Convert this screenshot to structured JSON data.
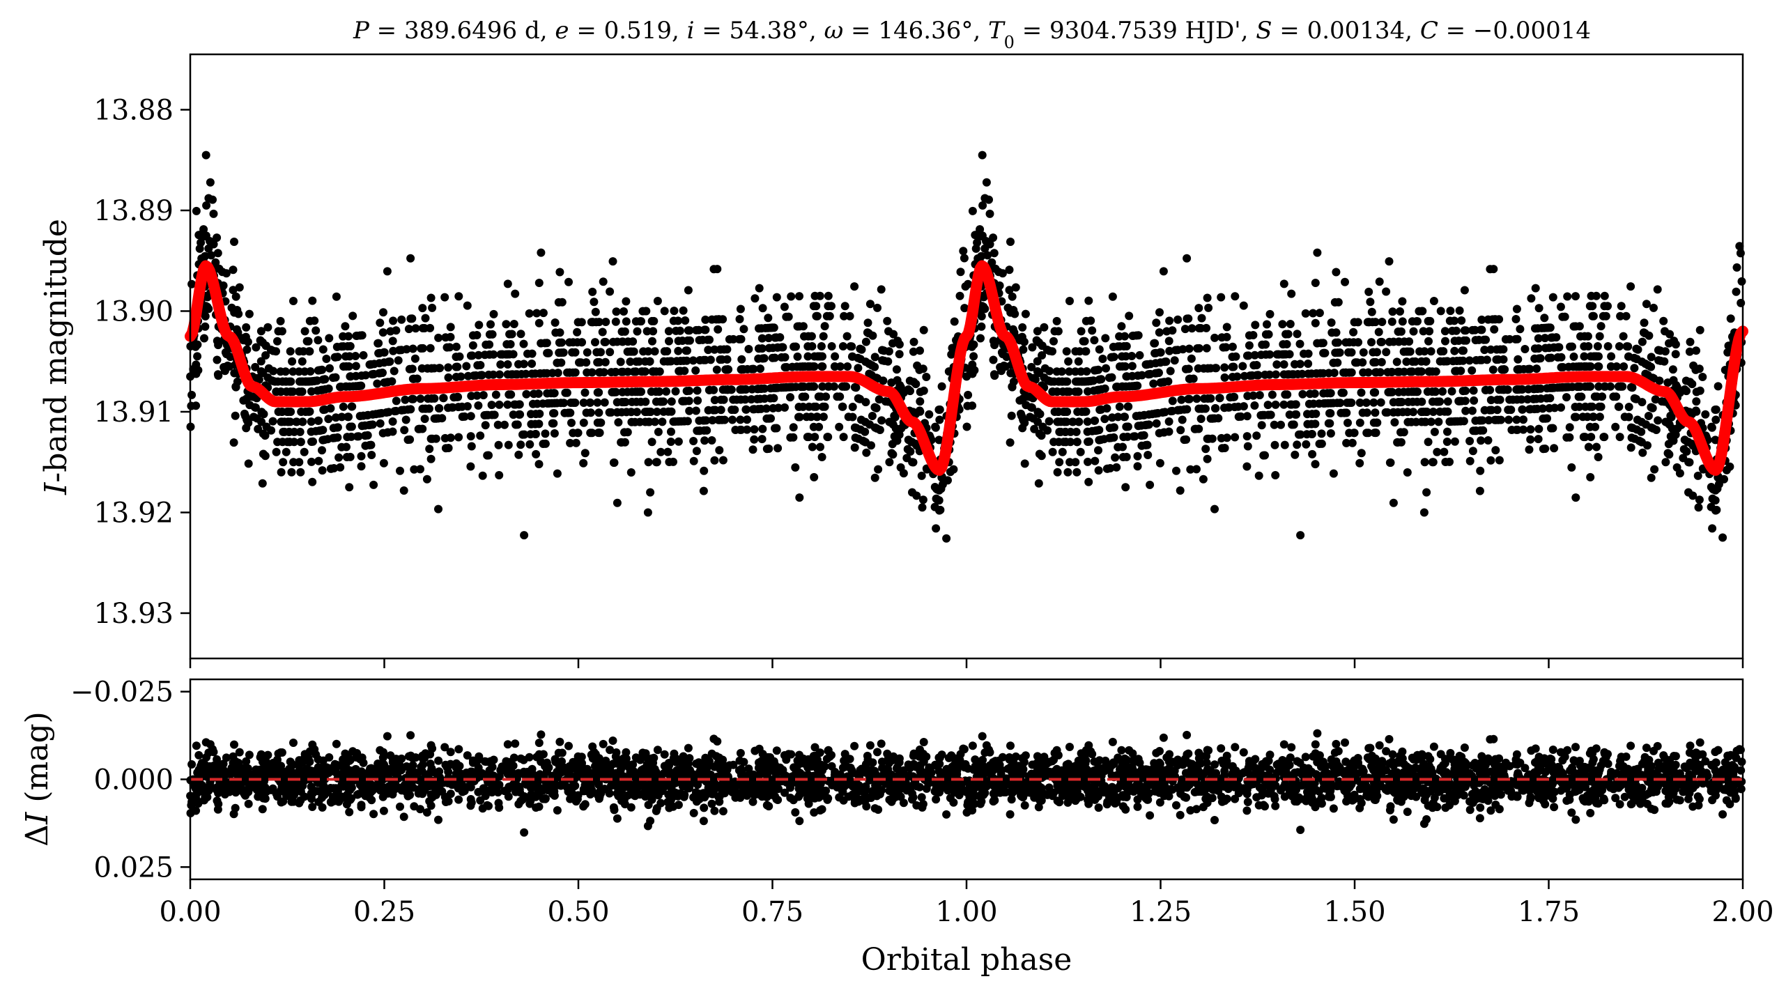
{
  "chart_data": [
    {
      "type": "scatter",
      "title": "P = 389.6496 d, e = 0.519, i = 54.38°, ω = 146.36°, T0 = 9304.7539 HJD', S = 0.00134, C = −0.00014",
      "xlabel": "",
      "ylabel": "I-band magnitude",
      "xlim": [
        0.0,
        2.0
      ],
      "ylim": [
        13.9345,
        13.8745
      ],
      "y_inverted": true,
      "yticks": [
        "13.88",
        "13.89",
        "13.90",
        "13.91",
        "13.92",
        "13.93"
      ],
      "ytick_values": [
        13.88,
        13.89,
        13.9,
        13.91,
        13.92,
        13.93
      ],
      "series": [
        {
          "kind": "points",
          "color": "#000000",
          "baseline_mag": 13.907,
          "scatter_sigma_mag": 0.004
        },
        {
          "kind": "model-line",
          "color": "#ff0000",
          "x": [
            0.0,
            0.02,
            0.05,
            0.08,
            0.11,
            0.15,
            0.2,
            0.3,
            0.4,
            0.5,
            0.6,
            0.7,
            0.8,
            0.85,
            0.9,
            0.93,
            0.965,
            1.0,
            1.02,
            1.05,
            1.08,
            1.11,
            1.15,
            1.2,
            1.3,
            1.4,
            1.5,
            1.6,
            1.7,
            1.8,
            1.85,
            1.9,
            1.93,
            1.965,
            2.0
          ],
          "y": [
            13.9025,
            13.8955,
            13.9025,
            13.9075,
            13.909,
            13.909,
            13.9085,
            13.9077,
            13.9073,
            13.9071,
            13.907,
            13.9068,
            13.9065,
            13.9065,
            13.908,
            13.911,
            13.9158,
            13.9025,
            13.8955,
            13.9025,
            13.9075,
            13.909,
            13.909,
            13.9085,
            13.9077,
            13.9073,
            13.9071,
            13.907,
            13.9068,
            13.9065,
            13.9065,
            13.908,
            13.911,
            13.9158,
            13.902
          ]
        }
      ]
    },
    {
      "type": "scatter",
      "xlabel": "Orbital phase",
      "ylabel": "ΔI (mag)",
      "xlim": [
        0.0,
        2.0
      ],
      "ylim": [
        0.0285,
        -0.0285
      ],
      "y_inverted": true,
      "xticks": [
        "0.00",
        "0.25",
        "0.50",
        "0.75",
        "1.00",
        "1.25",
        "1.50",
        "1.75",
        "2.00"
      ],
      "xtick_values": [
        0.0,
        0.25,
        0.5,
        0.75,
        1.0,
        1.25,
        1.5,
        1.75,
        2.0
      ],
      "yticks": [
        "−0.025",
        "0.000",
        "0.025"
      ],
      "ytick_values": [
        -0.025,
        0.0,
        0.025
      ],
      "series": [
        {
          "kind": "points",
          "color": "#000000",
          "residual_sigma_mag": 0.004
        },
        {
          "kind": "zero-line",
          "color": "#d62728",
          "dashed": true,
          "y": 0.0
        }
      ]
    }
  ]
}
